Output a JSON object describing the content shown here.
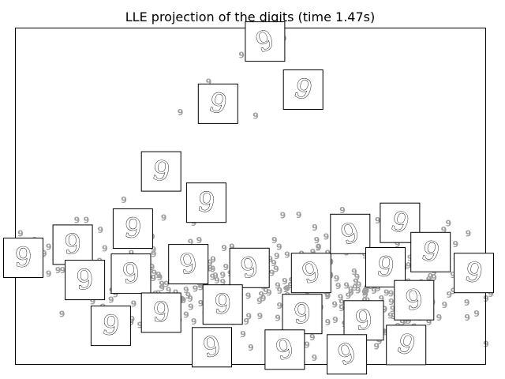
{
  "chart_data": {
    "type": "scatter",
    "title": "LLE projection of the digits (time 1.47s)",
    "xlabel": "",
    "ylabel": "",
    "xlim": [
      0,
      1
    ],
    "ylim": [
      0,
      1
    ],
    "grid": false,
    "axis_ticks": false,
    "marker": "9",
    "marker_color": "#9e9e9e",
    "thumbnail_glyph": "9",
    "points_seed": 20240517,
    "cluster_points": 340,
    "sparse_points": [
      [
        0.57,
        0.97
      ],
      [
        0.48,
        0.92
      ],
      [
        0.41,
        0.84
      ],
      [
        0.35,
        0.75
      ],
      [
        0.51,
        0.74
      ],
      [
        0.23,
        0.49
      ],
      [
        0.13,
        0.43
      ],
      [
        0.15,
        0.43
      ],
      [
        0.01,
        0.39
      ],
      [
        0.18,
        0.4
      ],
      [
        0.29,
        0.38
      ],
      [
        0.09,
        0.39
      ],
      [
        0.04,
        0.37
      ],
      [
        0.07,
        0.35
      ],
      [
        0.06,
        0.33
      ],
      [
        0.39,
        0.37
      ],
      [
        0.09,
        0.28
      ],
      [
        0.1,
        0.28
      ],
      [
        0.07,
        0.27
      ],
      [
        0.12,
        0.27
      ],
      [
        0.92,
        0.42
      ],
      [
        0.91,
        0.4
      ],
      [
        0.68,
        0.38
      ],
      [
        0.64,
        0.37
      ],
      [
        0.55,
        0.37
      ],
      [
        0.56,
        0.35
      ],
      [
        0.66,
        0.38
      ],
      [
        0.88,
        0.14
      ],
      [
        0.9,
        0.14
      ],
      [
        0.86,
        0.14
      ],
      [
        1.01,
        0.21
      ],
      [
        0.96,
        0.14
      ],
      [
        0.5,
        0.05
      ],
      [
        0.67,
        0.05
      ],
      [
        0.7,
        0.05
      ]
    ],
    "clusters": [
      {
        "cx": 0.34,
        "cy": 0.22,
        "sx": 0.11,
        "sy": 0.07,
        "weight": 0.4
      },
      {
        "cx": 0.73,
        "cy": 0.24,
        "sx": 0.12,
        "sy": 0.08,
        "weight": 0.6
      }
    ],
    "thumbnails": [
      [
        0.53,
        0.961
      ],
      [
        0.611,
        0.818
      ],
      [
        0.43,
        0.776
      ],
      [
        0.309,
        0.575
      ],
      [
        0.405,
        0.482
      ],
      [
        0.249,
        0.405
      ],
      [
        0.016,
        0.318
      ],
      [
        0.121,
        0.357
      ],
      [
        0.147,
        0.252
      ],
      [
        0.245,
        0.271
      ],
      [
        0.367,
        0.299
      ],
      [
        0.497,
        0.288
      ],
      [
        0.628,
        0.273
      ],
      [
        0.711,
        0.389
      ],
      [
        0.817,
        0.422
      ],
      [
        0.882,
        0.335
      ],
      [
        0.974,
        0.273
      ],
      [
        0.786,
        0.29
      ],
      [
        0.202,
        0.116
      ],
      [
        0.309,
        0.155
      ],
      [
        0.44,
        0.179
      ],
      [
        0.609,
        0.151
      ],
      [
        0.74,
        0.132
      ],
      [
        0.847,
        0.192
      ],
      [
        0.417,
        0.052
      ],
      [
        0.572,
        0.045
      ],
      [
        0.704,
        0.031
      ],
      [
        0.83,
        0.059
      ]
    ]
  }
}
